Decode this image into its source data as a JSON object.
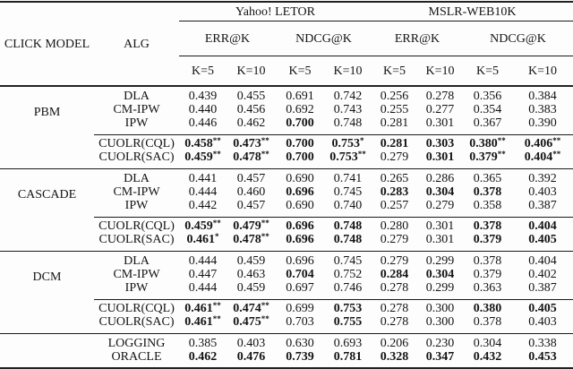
{
  "header": {
    "click_model": "CLICK MODEL",
    "alg": "ALG",
    "datasets": [
      {
        "label": "Yahoo! LETOR"
      },
      {
        "label": "MSLR-WEB10K"
      }
    ],
    "metrics": [
      "ERR@K",
      "NDCG@K",
      "ERR@K",
      "NDCG@K"
    ],
    "k_labels": [
      "K=5",
      "K=10",
      "K=5",
      "K=10",
      "K=5",
      "K=10",
      "K=5",
      "K=10"
    ]
  },
  "sections": [
    {
      "model": "PBM",
      "rows": [
        {
          "alg": "DLA",
          "type": "baseline",
          "cells": [
            {
              "v": "0.439"
            },
            {
              "v": "0.455"
            },
            {
              "v": "0.691"
            },
            {
              "v": "0.742"
            },
            {
              "v": "0.256"
            },
            {
              "v": "0.278"
            },
            {
              "v": "0.356"
            },
            {
              "v": "0.384"
            }
          ]
        },
        {
          "alg": "CM-IPW",
          "type": "baseline",
          "cells": [
            {
              "v": "0.440"
            },
            {
              "v": "0.456"
            },
            {
              "v": "0.692"
            },
            {
              "v": "0.743"
            },
            {
              "v": "0.255"
            },
            {
              "v": "0.277"
            },
            {
              "v": "0.354"
            },
            {
              "v": "0.383"
            }
          ]
        },
        {
          "alg": "IPW",
          "type": "baseline",
          "cells": [
            {
              "v": "0.446"
            },
            {
              "v": "0.462"
            },
            {
              "v": "0.700",
              "b": 1
            },
            {
              "v": "0.748"
            },
            {
              "v": "0.281"
            },
            {
              "v": "0.301"
            },
            {
              "v": "0.367"
            },
            {
              "v": "0.390"
            }
          ]
        },
        {
          "alg": "CUOLR(CQL)",
          "type": "cuolr",
          "cells": [
            {
              "v": "0.458",
              "b": 1,
              "s": "**"
            },
            {
              "v": "0.473",
              "b": 1,
              "s": "**"
            },
            {
              "v": "0.700",
              "b": 1
            },
            {
              "v": "0.753",
              "b": 1,
              "s": "*"
            },
            {
              "v": "0.281",
              "b": 1
            },
            {
              "v": "0.303",
              "b": 1
            },
            {
              "v": "0.380",
              "b": 1,
              "s": "**"
            },
            {
              "v": "0.406",
              "b": 1,
              "s": "**"
            }
          ]
        },
        {
          "alg": "CUOLR(SAC)",
          "type": "cuolr",
          "cells": [
            {
              "v": "0.459",
              "b": 1,
              "s": "**"
            },
            {
              "v": "0.478",
              "b": 1,
              "s": "**"
            },
            {
              "v": "0.700",
              "b": 1
            },
            {
              "v": "0.753",
              "b": 1,
              "s": "**"
            },
            {
              "v": "0.279"
            },
            {
              "v": "0.301",
              "b": 1
            },
            {
              "v": "0.379",
              "b": 1,
              "s": "**"
            },
            {
              "v": "0.404",
              "b": 1,
              "s": "**"
            }
          ]
        }
      ]
    },
    {
      "model": "CASCADE",
      "rows": [
        {
          "alg": "DLA",
          "type": "baseline",
          "cells": [
            {
              "v": "0.441"
            },
            {
              "v": "0.457"
            },
            {
              "v": "0.690"
            },
            {
              "v": "0.741"
            },
            {
              "v": "0.265"
            },
            {
              "v": "0.286"
            },
            {
              "v": "0.365"
            },
            {
              "v": "0.392"
            }
          ]
        },
        {
          "alg": "CM-IPW",
          "type": "baseline",
          "cells": [
            {
              "v": "0.444"
            },
            {
              "v": "0.460"
            },
            {
              "v": "0.696",
              "b": 1
            },
            {
              "v": "0.745"
            },
            {
              "v": "0.283",
              "b": 1
            },
            {
              "v": "0.304",
              "b": 1
            },
            {
              "v": "0.378",
              "b": 1
            },
            {
              "v": "0.403"
            }
          ]
        },
        {
          "alg": "IPW",
          "type": "baseline",
          "cells": [
            {
              "v": "0.442"
            },
            {
              "v": "0.457"
            },
            {
              "v": "0.690"
            },
            {
              "v": "0.740"
            },
            {
              "v": "0.257"
            },
            {
              "v": "0.279"
            },
            {
              "v": "0.358"
            },
            {
              "v": "0.387"
            }
          ]
        },
        {
          "alg": "CUOLR(CQL)",
          "type": "cuolr",
          "cells": [
            {
              "v": "0.459",
              "b": 1,
              "s": "**"
            },
            {
              "v": "0.479",
              "b": 1,
              "s": "**"
            },
            {
              "v": "0.696",
              "b": 1
            },
            {
              "v": "0.748",
              "b": 1
            },
            {
              "v": "0.280"
            },
            {
              "v": "0.301"
            },
            {
              "v": "0.378",
              "b": 1
            },
            {
              "v": "0.404",
              "b": 1
            }
          ]
        },
        {
          "alg": "CUOLR(SAC)",
          "type": "cuolr",
          "cells": [
            {
              "v": "0.461",
              "b": 1,
              "s": "*"
            },
            {
              "v": "0.478",
              "b": 1,
              "s": "**"
            },
            {
              "v": "0.696",
              "b": 1
            },
            {
              "v": "0.748",
              "b": 1
            },
            {
              "v": "0.279"
            },
            {
              "v": "0.301"
            },
            {
              "v": "0.379",
              "b": 1
            },
            {
              "v": "0.405",
              "b": 1
            }
          ]
        }
      ]
    },
    {
      "model": "DCM",
      "rows": [
        {
          "alg": "DLA",
          "type": "baseline",
          "cells": [
            {
              "v": "0.444"
            },
            {
              "v": "0.459"
            },
            {
              "v": "0.696"
            },
            {
              "v": "0.745"
            },
            {
              "v": "0.279"
            },
            {
              "v": "0.299"
            },
            {
              "v": "0.378"
            },
            {
              "v": "0.404"
            }
          ]
        },
        {
          "alg": "CM-IPW",
          "type": "baseline",
          "cells": [
            {
              "v": "0.447"
            },
            {
              "v": "0.463"
            },
            {
              "v": "0.704",
              "b": 1
            },
            {
              "v": "0.752"
            },
            {
              "v": "0.284",
              "b": 1
            },
            {
              "v": "0.304",
              "b": 1
            },
            {
              "v": "0.379"
            },
            {
              "v": "0.402"
            }
          ]
        },
        {
          "alg": "IPW",
          "type": "baseline",
          "cells": [
            {
              "v": "0.444"
            },
            {
              "v": "0.459"
            },
            {
              "v": "0.697"
            },
            {
              "v": "0.746"
            },
            {
              "v": "0.278"
            },
            {
              "v": "0.299"
            },
            {
              "v": "0.363"
            },
            {
              "v": "0.387"
            }
          ]
        },
        {
          "alg": "CUOLR(CQL)",
          "type": "cuolr",
          "cells": [
            {
              "v": "0.461",
              "b": 1,
              "s": "**"
            },
            {
              "v": "0.474",
              "b": 1,
              "s": "**"
            },
            {
              "v": "0.699"
            },
            {
              "v": "0.753",
              "b": 1
            },
            {
              "v": "0.278"
            },
            {
              "v": "0.300"
            },
            {
              "v": "0.380",
              "b": 1
            },
            {
              "v": "0.405",
              "b": 1
            }
          ]
        },
        {
          "alg": "CUOLR(SAC)",
          "type": "cuolr",
          "cells": [
            {
              "v": "0.461",
              "b": 1,
              "s": "**"
            },
            {
              "v": "0.475",
              "b": 1,
              "s": "**"
            },
            {
              "v": "0.703"
            },
            {
              "v": "0.755",
              "b": 1
            },
            {
              "v": "0.278"
            },
            {
              "v": "0.300"
            },
            {
              "v": "0.378"
            },
            {
              "v": "0.403"
            }
          ]
        }
      ]
    },
    {
      "model": "",
      "rows": [
        {
          "alg": "LOGGING",
          "type": "summary",
          "cells": [
            {
              "v": "0.385"
            },
            {
              "v": "0.403"
            },
            {
              "v": "0.630"
            },
            {
              "v": "0.693"
            },
            {
              "v": "0.206"
            },
            {
              "v": "0.230"
            },
            {
              "v": "0.304"
            },
            {
              "v": "0.338"
            }
          ]
        },
        {
          "alg": "ORACLE",
          "type": "summary",
          "cells": [
            {
              "v": "0.462",
              "b": 1
            },
            {
              "v": "0.476",
              "b": 1
            },
            {
              "v": "0.739",
              "b": 1
            },
            {
              "v": "0.781",
              "b": 1
            },
            {
              "v": "0.328",
              "b": 1
            },
            {
              "v": "0.347",
              "b": 1
            },
            {
              "v": "0.432",
              "b": 1
            },
            {
              "v": "0.453",
              "b": 1
            }
          ]
        }
      ]
    }
  ]
}
